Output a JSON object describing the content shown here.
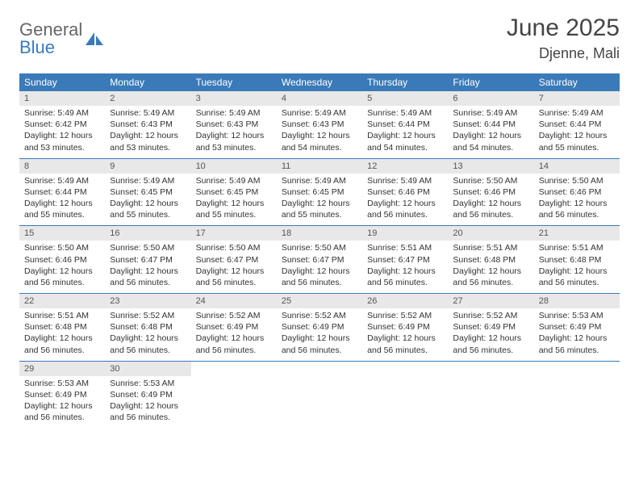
{
  "logo": {
    "text_top": "General",
    "text_bottom": "Blue",
    "top_color": "#666666",
    "bottom_color": "#3a7ab8",
    "icon_color": "#3a7ab8"
  },
  "header": {
    "month_title": "June 2025",
    "location": "Djenne, Mali"
  },
  "colors": {
    "header_bar": "#3a7ab8",
    "day_number_bg": "#e8e8e8",
    "week_border": "#3a7ab8",
    "text": "#333333"
  },
  "calendar": {
    "day_names": [
      "Sunday",
      "Monday",
      "Tuesday",
      "Wednesday",
      "Thursday",
      "Friday",
      "Saturday"
    ],
    "weeks": [
      [
        {
          "day": 1,
          "sunrise": "Sunrise: 5:49 AM",
          "sunset": "Sunset: 6:42 PM",
          "daylight": "Daylight: 12 hours and 53 minutes."
        },
        {
          "day": 2,
          "sunrise": "Sunrise: 5:49 AM",
          "sunset": "Sunset: 6:43 PM",
          "daylight": "Daylight: 12 hours and 53 minutes."
        },
        {
          "day": 3,
          "sunrise": "Sunrise: 5:49 AM",
          "sunset": "Sunset: 6:43 PM",
          "daylight": "Daylight: 12 hours and 53 minutes."
        },
        {
          "day": 4,
          "sunrise": "Sunrise: 5:49 AM",
          "sunset": "Sunset: 6:43 PM",
          "daylight": "Daylight: 12 hours and 54 minutes."
        },
        {
          "day": 5,
          "sunrise": "Sunrise: 5:49 AM",
          "sunset": "Sunset: 6:44 PM",
          "daylight": "Daylight: 12 hours and 54 minutes."
        },
        {
          "day": 6,
          "sunrise": "Sunrise: 5:49 AM",
          "sunset": "Sunset: 6:44 PM",
          "daylight": "Daylight: 12 hours and 54 minutes."
        },
        {
          "day": 7,
          "sunrise": "Sunrise: 5:49 AM",
          "sunset": "Sunset: 6:44 PM",
          "daylight": "Daylight: 12 hours and 55 minutes."
        }
      ],
      [
        {
          "day": 8,
          "sunrise": "Sunrise: 5:49 AM",
          "sunset": "Sunset: 6:44 PM",
          "daylight": "Daylight: 12 hours and 55 minutes."
        },
        {
          "day": 9,
          "sunrise": "Sunrise: 5:49 AM",
          "sunset": "Sunset: 6:45 PM",
          "daylight": "Daylight: 12 hours and 55 minutes."
        },
        {
          "day": 10,
          "sunrise": "Sunrise: 5:49 AM",
          "sunset": "Sunset: 6:45 PM",
          "daylight": "Daylight: 12 hours and 55 minutes."
        },
        {
          "day": 11,
          "sunrise": "Sunrise: 5:49 AM",
          "sunset": "Sunset: 6:45 PM",
          "daylight": "Daylight: 12 hours and 55 minutes."
        },
        {
          "day": 12,
          "sunrise": "Sunrise: 5:49 AM",
          "sunset": "Sunset: 6:46 PM",
          "daylight": "Daylight: 12 hours and 56 minutes."
        },
        {
          "day": 13,
          "sunrise": "Sunrise: 5:50 AM",
          "sunset": "Sunset: 6:46 PM",
          "daylight": "Daylight: 12 hours and 56 minutes."
        },
        {
          "day": 14,
          "sunrise": "Sunrise: 5:50 AM",
          "sunset": "Sunset: 6:46 PM",
          "daylight": "Daylight: 12 hours and 56 minutes."
        }
      ],
      [
        {
          "day": 15,
          "sunrise": "Sunrise: 5:50 AM",
          "sunset": "Sunset: 6:46 PM",
          "daylight": "Daylight: 12 hours and 56 minutes."
        },
        {
          "day": 16,
          "sunrise": "Sunrise: 5:50 AM",
          "sunset": "Sunset: 6:47 PM",
          "daylight": "Daylight: 12 hours and 56 minutes."
        },
        {
          "day": 17,
          "sunrise": "Sunrise: 5:50 AM",
          "sunset": "Sunset: 6:47 PM",
          "daylight": "Daylight: 12 hours and 56 minutes."
        },
        {
          "day": 18,
          "sunrise": "Sunrise: 5:50 AM",
          "sunset": "Sunset: 6:47 PM",
          "daylight": "Daylight: 12 hours and 56 minutes."
        },
        {
          "day": 19,
          "sunrise": "Sunrise: 5:51 AM",
          "sunset": "Sunset: 6:47 PM",
          "daylight": "Daylight: 12 hours and 56 minutes."
        },
        {
          "day": 20,
          "sunrise": "Sunrise: 5:51 AM",
          "sunset": "Sunset: 6:48 PM",
          "daylight": "Daylight: 12 hours and 56 minutes."
        },
        {
          "day": 21,
          "sunrise": "Sunrise: 5:51 AM",
          "sunset": "Sunset: 6:48 PM",
          "daylight": "Daylight: 12 hours and 56 minutes."
        }
      ],
      [
        {
          "day": 22,
          "sunrise": "Sunrise: 5:51 AM",
          "sunset": "Sunset: 6:48 PM",
          "daylight": "Daylight: 12 hours and 56 minutes."
        },
        {
          "day": 23,
          "sunrise": "Sunrise: 5:52 AM",
          "sunset": "Sunset: 6:48 PM",
          "daylight": "Daylight: 12 hours and 56 minutes."
        },
        {
          "day": 24,
          "sunrise": "Sunrise: 5:52 AM",
          "sunset": "Sunset: 6:49 PM",
          "daylight": "Daylight: 12 hours and 56 minutes."
        },
        {
          "day": 25,
          "sunrise": "Sunrise: 5:52 AM",
          "sunset": "Sunset: 6:49 PM",
          "daylight": "Daylight: 12 hours and 56 minutes."
        },
        {
          "day": 26,
          "sunrise": "Sunrise: 5:52 AM",
          "sunset": "Sunset: 6:49 PM",
          "daylight": "Daylight: 12 hours and 56 minutes."
        },
        {
          "day": 27,
          "sunrise": "Sunrise: 5:52 AM",
          "sunset": "Sunset: 6:49 PM",
          "daylight": "Daylight: 12 hours and 56 minutes."
        },
        {
          "day": 28,
          "sunrise": "Sunrise: 5:53 AM",
          "sunset": "Sunset: 6:49 PM",
          "daylight": "Daylight: 12 hours and 56 minutes."
        }
      ],
      [
        {
          "day": 29,
          "sunrise": "Sunrise: 5:53 AM",
          "sunset": "Sunset: 6:49 PM",
          "daylight": "Daylight: 12 hours and 56 minutes."
        },
        {
          "day": 30,
          "sunrise": "Sunrise: 5:53 AM",
          "sunset": "Sunset: 6:49 PM",
          "daylight": "Daylight: 12 hours and 56 minutes."
        },
        null,
        null,
        null,
        null,
        null
      ]
    ]
  }
}
